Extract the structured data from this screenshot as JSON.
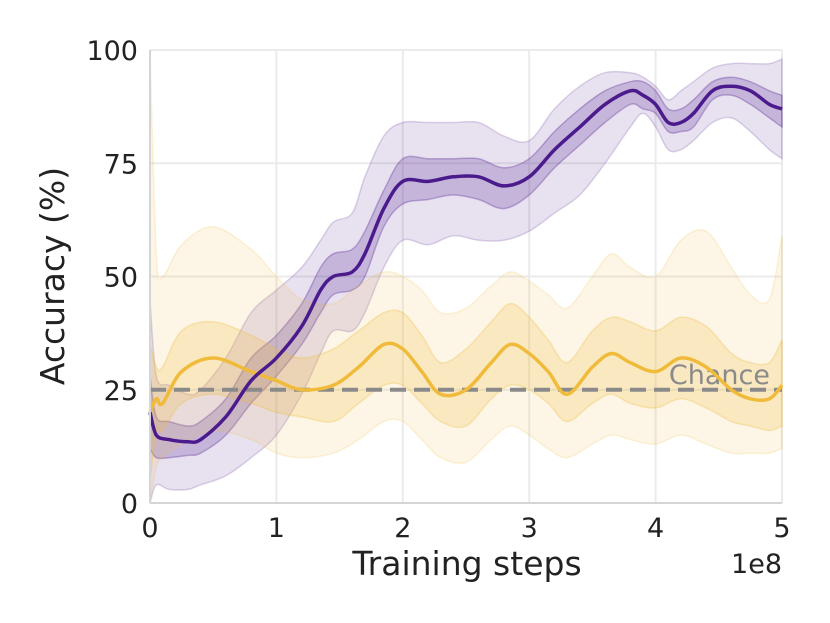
{
  "chart_data": {
    "type": "line",
    "title": "",
    "xlabel": "Training steps",
    "ylabel": "Accuracy (%)",
    "x_offset_label": "1e8",
    "xlim": [
      0,
      5
    ],
    "ylim": [
      0,
      100
    ],
    "x_ticks": [
      0,
      1,
      2,
      3,
      4,
      5
    ],
    "x_tick_labels": [
      "0",
      "1",
      "2",
      "3",
      "4",
      "5"
    ],
    "y_ticks": [
      0,
      25,
      50,
      75,
      100
    ],
    "y_tick_labels": [
      "0",
      "25",
      "50",
      "75",
      "100"
    ],
    "grid": true,
    "reference_line": {
      "label": "Chance",
      "y": 25,
      "color": "#8a8a8a",
      "style": "dashed"
    },
    "series": [
      {
        "color": "#4b1a8c",
        "x": [
          0.0,
          0.05,
          0.15,
          0.3,
          0.4,
          0.6,
          0.8,
          1.0,
          1.2,
          1.35,
          1.45,
          1.6,
          1.7,
          1.85,
          2.0,
          2.2,
          2.4,
          2.6,
          2.8,
          3.0,
          3.2,
          3.4,
          3.6,
          3.8,
          3.9,
          4.0,
          4.1,
          4.2,
          4.3,
          4.45,
          4.6,
          4.75,
          4.9,
          5.0
        ],
        "mean": [
          20,
          15,
          14,
          13.5,
          14,
          19,
          27,
          32,
          39,
          47,
          50,
          51,
          55,
          65,
          71,
          71,
          72,
          72,
          70,
          72,
          78,
          83,
          88,
          91,
          90,
          88,
          84,
          84,
          86,
          91,
          92,
          91,
          88,
          87
        ],
        "inner_low": [
          12,
          10,
          10,
          10.5,
          11,
          15,
          22,
          28,
          35,
          42,
          46,
          47,
          50,
          61,
          66,
          67,
          68,
          67,
          65,
          68,
          74,
          79,
          84,
          88,
          87,
          86,
          82,
          82,
          83,
          89,
          90,
          88,
          85,
          83
        ],
        "inner_high": [
          28,
          19,
          18,
          17,
          18,
          23,
          32,
          37,
          44,
          52,
          55,
          56,
          60,
          69,
          76,
          76,
          76,
          76,
          74,
          76,
          82,
          87,
          91,
          93,
          93,
          91,
          87,
          87,
          89,
          93,
          94,
          93,
          91,
          90
        ],
        "outer_low": [
          0,
          4,
          3,
          3,
          4,
          6,
          10,
          15,
          24,
          33,
          38,
          38,
          42,
          52,
          58,
          57,
          59,
          58,
          58,
          60,
          64,
          68,
          75,
          83,
          86,
          83,
          78,
          78,
          80,
          84,
          85,
          82,
          78,
          76
        ],
        "outer_high": [
          45,
          28,
          26,
          24,
          25,
          32,
          42,
          47,
          52,
          58,
          62,
          64,
          72,
          81,
          84,
          84,
          84,
          84,
          81,
          80,
          87,
          92,
          95,
          95,
          94,
          92,
          89,
          91,
          93,
          96,
          97,
          97,
          97,
          98
        ]
      },
      {
        "color": "#f0bb3a",
        "x": [
          0.0,
          0.05,
          0.1,
          0.25,
          0.5,
          0.8,
          1.0,
          1.2,
          1.45,
          1.65,
          1.85,
          2.0,
          2.15,
          2.3,
          2.5,
          2.7,
          2.85,
          3.0,
          3.15,
          3.3,
          3.5,
          3.65,
          3.8,
          4.0,
          4.2,
          4.4,
          4.6,
          4.75,
          4.9,
          5.0
        ],
        "mean": [
          20,
          23,
          22,
          29,
          32,
          29,
          27,
          25,
          26,
          30,
          35,
          34,
          29,
          24,
          25,
          31,
          35,
          33,
          29,
          24,
          30,
          33,
          31,
          29,
          32,
          30,
          25,
          23,
          23,
          26
        ],
        "inner_low": [
          5,
          16,
          16,
          22,
          24,
          22,
          20,
          19,
          18,
          22,
          26,
          26,
          22,
          18,
          17,
          23,
          26,
          25,
          22,
          18,
          22,
          24,
          22,
          21,
          23,
          21,
          18,
          17,
          16,
          17
        ],
        "inner_high": [
          35,
          30,
          30,
          38,
          40,
          37,
          34,
          32,
          34,
          38,
          42,
          42,
          37,
          31,
          34,
          40,
          44,
          41,
          36,
          31,
          38,
          41,
          40,
          38,
          41,
          39,
          33,
          31,
          31,
          36
        ],
        "outer_low": [
          0,
          8,
          10,
          13,
          16,
          14,
          11,
          10,
          11,
          14,
          18,
          18,
          14,
          10,
          9,
          14,
          17,
          15,
          12,
          10,
          13,
          15,
          14,
          13,
          15,
          13,
          11,
          11,
          11,
          12
        ],
        "outer_high": [
          100,
          55,
          50,
          57,
          61,
          56,
          50,
          45,
          44,
          48,
          51,
          50,
          47,
          42,
          43,
          48,
          51,
          49,
          46,
          43,
          50,
          55,
          52,
          50,
          58,
          60,
          52,
          46,
          45,
          59
        ]
      }
    ]
  }
}
